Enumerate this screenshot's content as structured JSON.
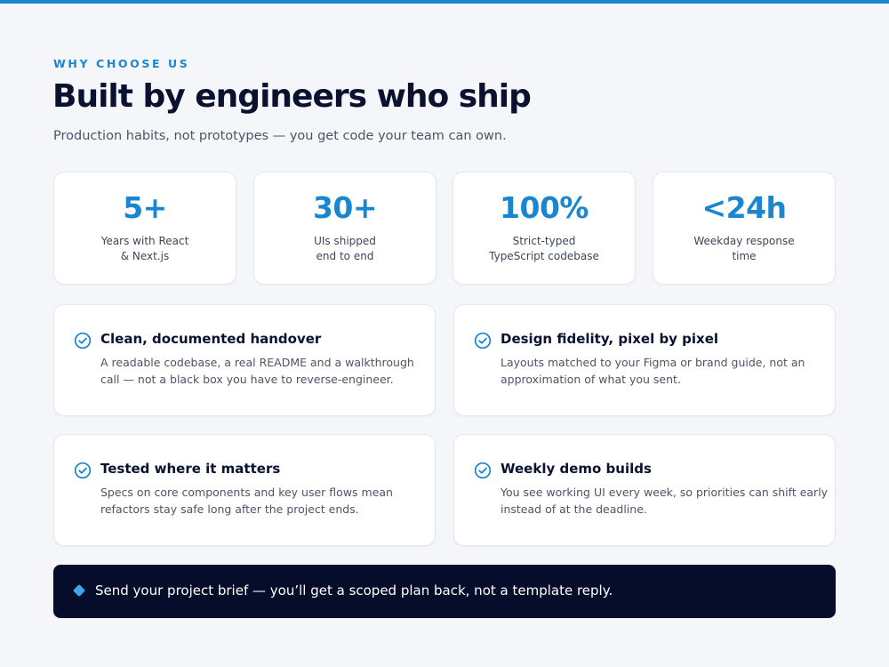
{
  "header": {
    "eyebrow": "WHY CHOOSE US",
    "title": "Built by engineers who ship",
    "subtitle": "Production habits, not prototypes — you get code your team can own."
  },
  "stats": [
    {
      "value": "5+",
      "label_lines": [
        "Years with React",
        "& Next.js"
      ]
    },
    {
      "value": "30+",
      "label_lines": [
        "UIs shipped",
        "end to end"
      ]
    },
    {
      "value": "100%",
      "label_lines": [
        "Strict-typed",
        "TypeScript codebase"
      ]
    },
    {
      "value": "<24h",
      "label_lines": [
        "Weekday response",
        "time"
      ]
    }
  ],
  "features": [
    {
      "icon": "check-circle-icon",
      "title": "Clean, documented handover",
      "desc_lines": [
        "A readable codebase, a real README and a walkthrough",
        "call — not a black box you have to reverse-engineer."
      ]
    },
    {
      "icon": "check-circle-icon",
      "title": "Design fidelity, pixel by pixel",
      "desc_lines": [
        "Layouts matched to your Figma or brand guide, not an",
        "approximation of what you sent."
      ]
    },
    {
      "icon": "check-circle-icon",
      "title": "Tested where it matters",
      "desc_lines": [
        "Specs on core components and key user flows mean",
        "refactors stay safe long after the project ends."
      ]
    },
    {
      "icon": "check-circle-icon",
      "title": "Weekly demo builds",
      "desc_lines": [
        "You see working UI every week, so priorities can shift early",
        "instead of at the deadline."
      ]
    }
  ],
  "cta": {
    "icon": "diamond-icon",
    "text": "Send your project brief — you’ll get a scoped plan back, not a template reply."
  },
  "colors": {
    "accent": "#1a86cf",
    "heading": "#0b1230",
    "background": "#f4f6f9",
    "cta_background": "#060d2a",
    "cta_icon": "#38a8ea"
  }
}
